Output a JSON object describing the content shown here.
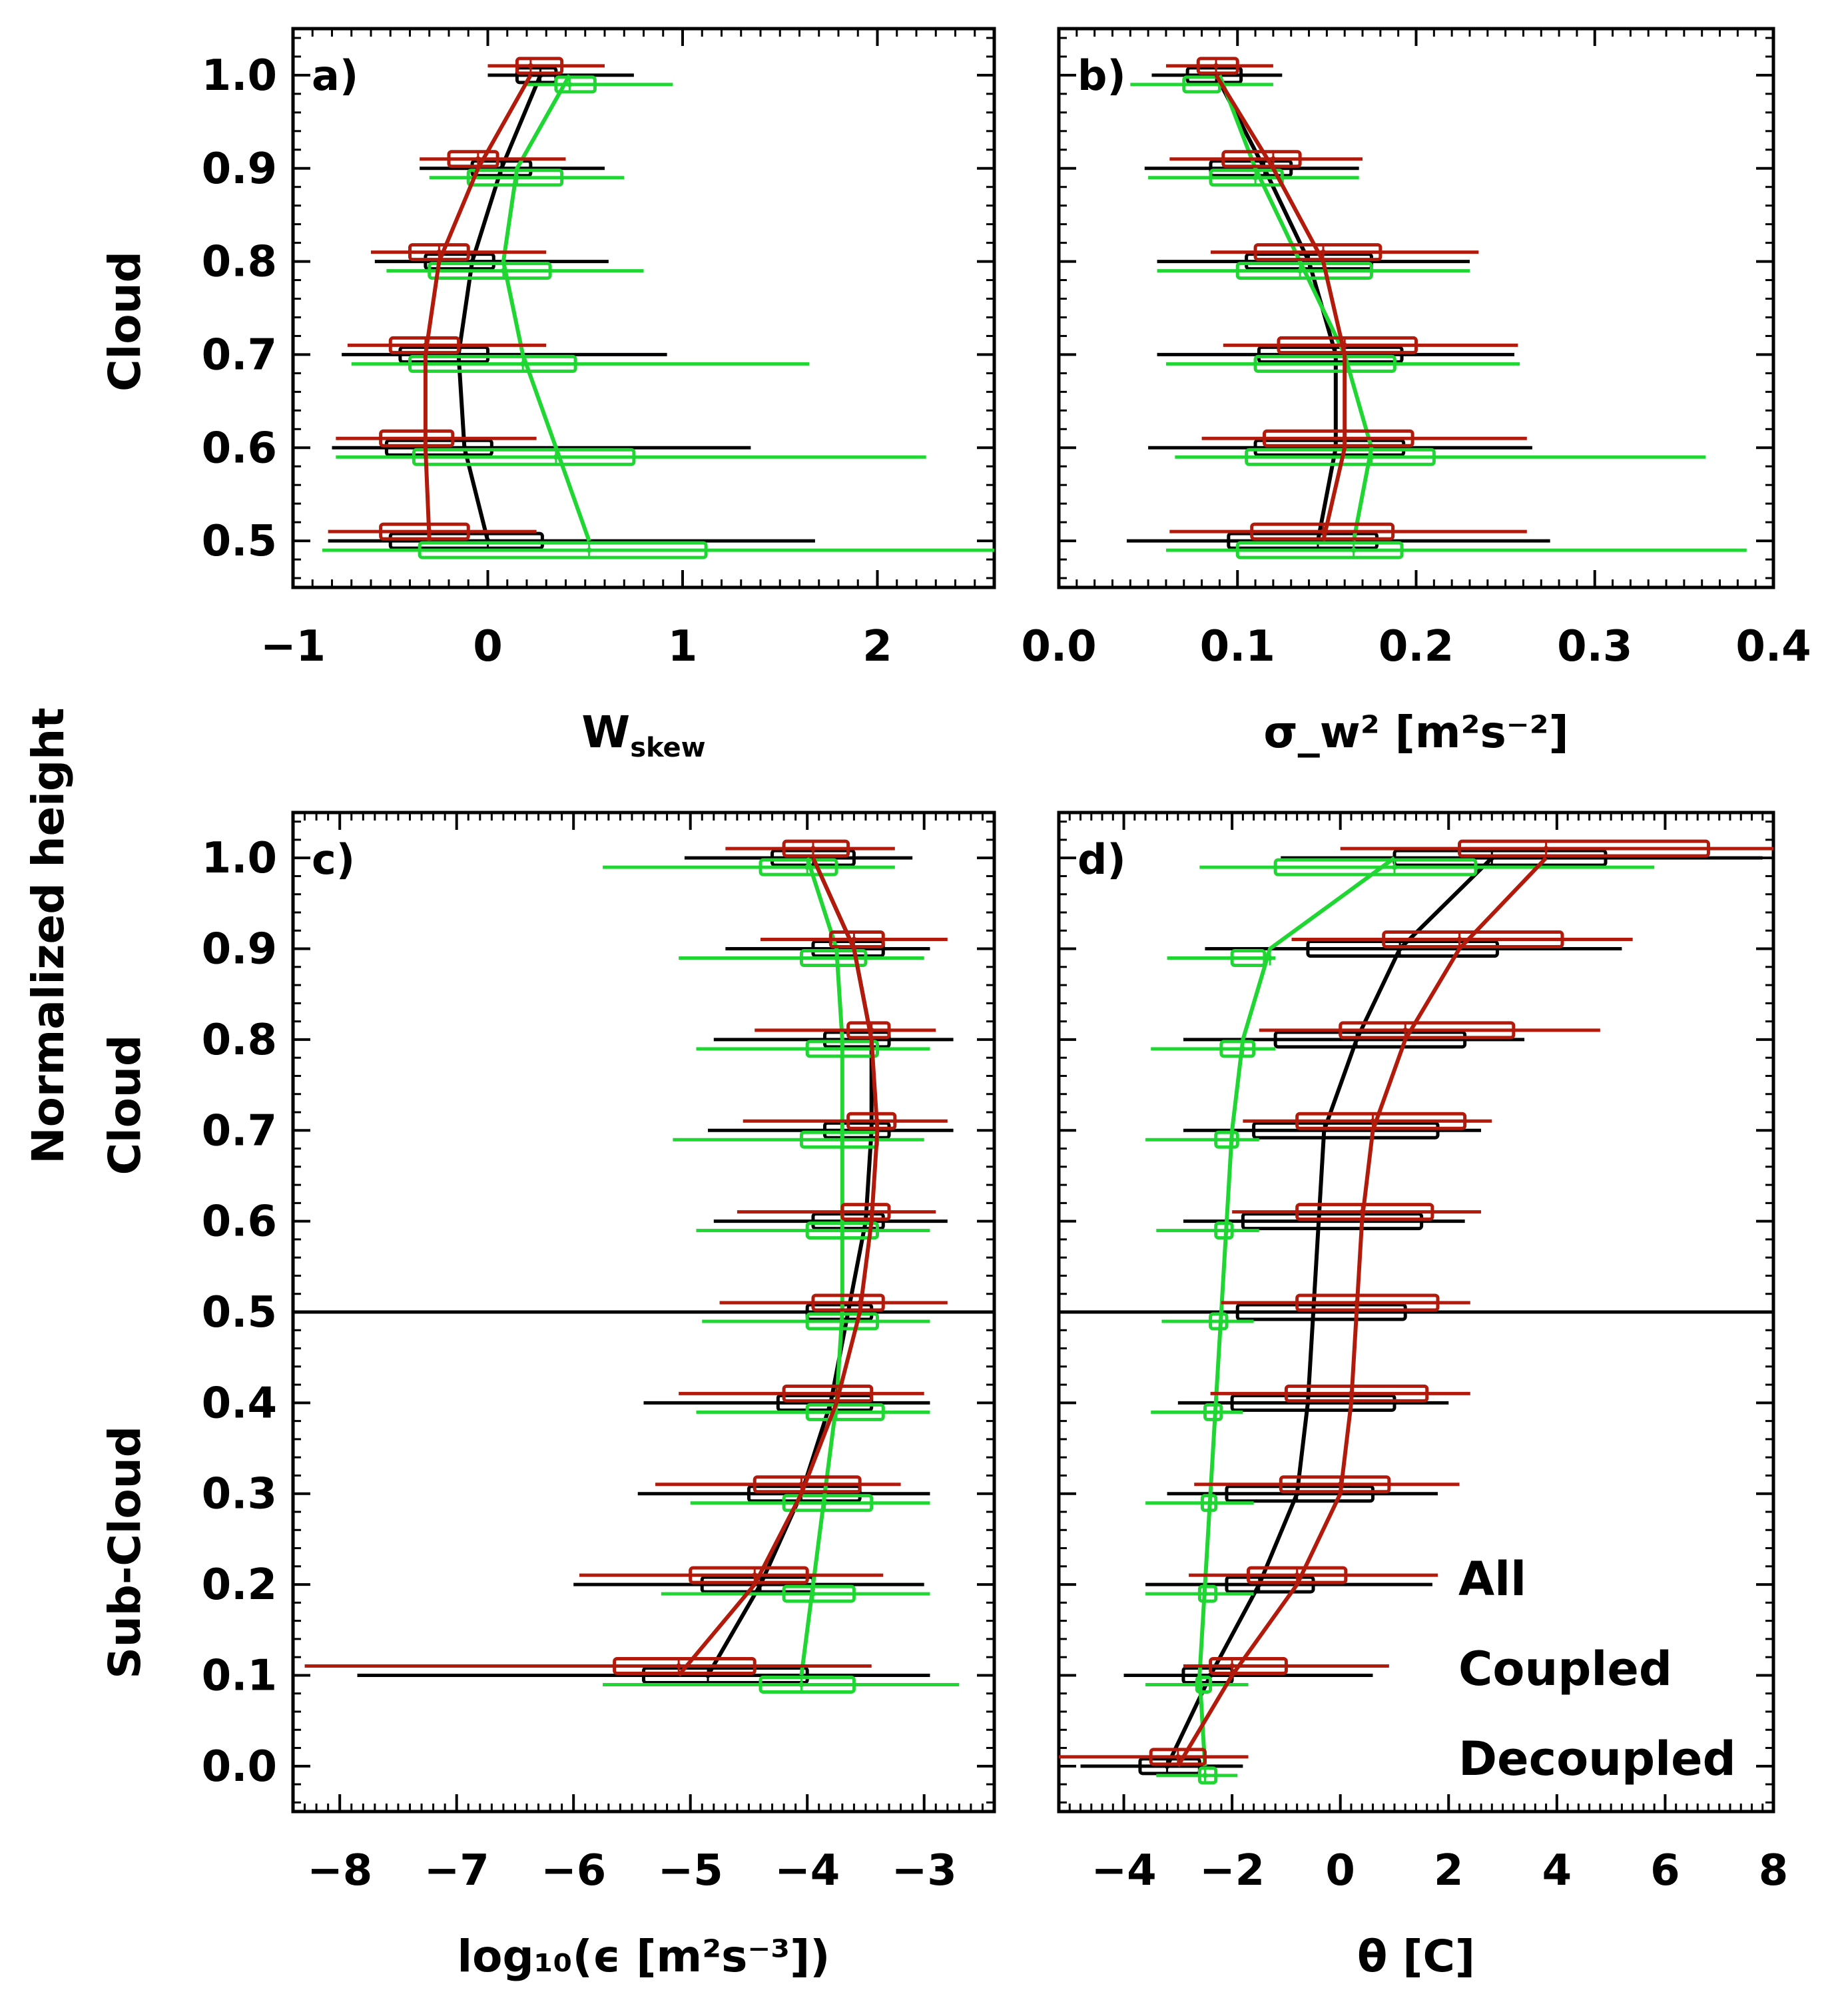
{
  "figure": {
    "ylabel": "Normalized height",
    "legend": [
      {
        "label": "All",
        "color": "#000000"
      },
      {
        "label": "Coupled",
        "color": "#1fd633"
      },
      {
        "label": "Decoupled",
        "color": "#b21a0c"
      }
    ]
  },
  "colors": {
    "all": "#000000",
    "coupled": "#1fd633",
    "decoupled": "#b21a0c"
  },
  "chart_data": [
    {
      "panel": "a)",
      "type": "line",
      "xlabel": "W",
      "xlabel_sub": "skew",
      "ylabel": "Cloud",
      "xlim": [
        -1,
        2.6
      ],
      "ylim": [
        0.45,
        1.05
      ],
      "xticks": [
        "−1",
        "0",
        "1",
        "2"
      ],
      "xtick_values": [
        -1,
        0,
        1,
        2
      ],
      "yticks": [
        "0.5",
        "0.6",
        "0.7",
        "0.8",
        "0.9",
        "1.0"
      ],
      "ytick_values": [
        0.5,
        0.6,
        0.7,
        0.8,
        0.9,
        1.0
      ],
      "series": [
        {
          "key": "all",
          "y": [
            0.5,
            0.6,
            0.7,
            0.8,
            0.9,
            1.0
          ],
          "median": [
            0.0,
            -0.12,
            -0.15,
            -0.08,
            0.07,
            0.27
          ],
          "q1": [
            -0.5,
            -0.52,
            -0.45,
            -0.32,
            -0.08,
            0.15
          ],
          "q3": [
            0.28,
            0.02,
            0.0,
            0.03,
            0.22,
            0.35
          ],
          "wlo": [
            -0.82,
            -0.8,
            -0.75,
            -0.58,
            -0.35,
            0.0
          ],
          "whi": [
            1.68,
            1.35,
            0.92,
            0.62,
            0.6,
            0.75
          ]
        },
        {
          "key": "coupled",
          "y": [
            0.5,
            0.6,
            0.7,
            0.8,
            0.9,
            1.0
          ],
          "median": [
            0.52,
            0.35,
            0.18,
            0.08,
            0.15,
            0.42
          ],
          "q1": [
            -0.35,
            -0.38,
            -0.4,
            -0.3,
            -0.1,
            0.35
          ],
          "q3": [
            1.12,
            0.75,
            0.45,
            0.32,
            0.38,
            0.55
          ],
          "wlo": [
            -0.85,
            -0.78,
            -0.7,
            -0.52,
            -0.3,
            0.2
          ],
          "whi": [
            2.6,
            2.25,
            1.65,
            0.8,
            0.7,
            0.95
          ]
        },
        {
          "key": "decoupled",
          "y": [
            0.5,
            0.6,
            0.7,
            0.8,
            0.9,
            1.0
          ],
          "median": [
            -0.3,
            -0.32,
            -0.32,
            -0.25,
            -0.05,
            0.22
          ],
          "q1": [
            -0.55,
            -0.55,
            -0.5,
            -0.4,
            -0.2,
            0.15
          ],
          "q3": [
            -0.1,
            -0.18,
            -0.15,
            -0.1,
            0.05,
            0.38
          ],
          "wlo": [
            -0.82,
            -0.78,
            -0.72,
            -0.6,
            -0.35,
            0.0
          ],
          "whi": [
            0.25,
            0.25,
            0.3,
            0.3,
            0.4,
            0.6
          ]
        }
      ]
    },
    {
      "panel": "b)",
      "type": "line",
      "xlabel": "σ_w² [m²s⁻²]",
      "xlim": [
        0.0,
        0.4
      ],
      "ylim": [
        0.45,
        1.05
      ],
      "xticks": [
        "0.0",
        "0.1",
        "0.2",
        "0.3",
        "0.4"
      ],
      "xtick_values": [
        0.0,
        0.1,
        0.2,
        0.3,
        0.4
      ],
      "series": [
        {
          "key": "all",
          "y": [
            0.5,
            0.6,
            0.7,
            0.8,
            0.9,
            1.0
          ],
          "median": [
            0.145,
            0.155,
            0.155,
            0.14,
            0.115,
            0.088
          ],
          "q1": [
            0.095,
            0.11,
            0.112,
            0.105,
            0.085,
            0.072
          ],
          "q3": [
            0.178,
            0.193,
            0.192,
            0.175,
            0.13,
            0.102
          ],
          "wlo": [
            0.038,
            0.05,
            0.055,
            0.055,
            0.048,
            0.052
          ],
          "whi": [
            0.275,
            0.265,
            0.255,
            0.23,
            0.168,
            0.125
          ]
        },
        {
          "key": "coupled",
          "y": [
            0.5,
            0.6,
            0.7,
            0.8,
            0.9,
            1.0
          ],
          "median": [
            0.165,
            0.175,
            0.16,
            0.135,
            0.11,
            0.09
          ],
          "q1": [
            0.1,
            0.105,
            0.11,
            0.1,
            0.085,
            0.07
          ],
          "q3": [
            0.192,
            0.21,
            0.188,
            0.175,
            0.125,
            0.09
          ],
          "wlo": [
            0.06,
            0.065,
            0.06,
            0.055,
            0.05,
            0.04
          ],
          "whi": [
            0.385,
            0.362,
            0.258,
            0.23,
            0.168,
            0.12
          ]
        },
        {
          "key": "decoupled",
          "y": [
            0.5,
            0.6,
            0.7,
            0.8,
            0.9,
            1.0
          ],
          "median": [
            0.148,
            0.16,
            0.16,
            0.148,
            0.12,
            0.088
          ],
          "q1": [
            0.108,
            0.115,
            0.123,
            0.11,
            0.092,
            0.078
          ],
          "q3": [
            0.187,
            0.198,
            0.2,
            0.18,
            0.135,
            0.1
          ],
          "wlo": [
            0.062,
            0.08,
            0.092,
            0.085,
            0.062,
            0.06
          ],
          "whi": [
            0.262,
            0.262,
            0.257,
            0.235,
            0.17,
            0.12
          ]
        }
      ]
    },
    {
      "panel": "c)",
      "type": "line",
      "xlabel": "log₁₀(ϵ [m²s⁻³])",
      "ylabel_top": "Cloud",
      "ylabel_bottom": "Sub-Cloud",
      "xlim": [
        -8.4,
        -2.4
      ],
      "ylim": [
        -0.05,
        1.05
      ],
      "xticks": [
        "−8",
        "−7",
        "−6",
        "−5",
        "−4",
        "−3"
      ],
      "xtick_values": [
        -8,
        -7,
        -6,
        -5,
        -4,
        -3
      ],
      "yticks": [
        "0.0",
        "0.1",
        "0.2",
        "0.3",
        "0.4",
        "0.5",
        "0.6",
        "0.7",
        "0.8",
        "0.9",
        "1.0"
      ],
      "ytick_values": [
        0.0,
        0.1,
        0.2,
        0.3,
        0.4,
        0.5,
        0.6,
        0.7,
        0.8,
        0.9,
        1.0
      ],
      "hline": 0.5,
      "series": [
        {
          "key": "all",
          "y": [
            0.1,
            0.2,
            0.3,
            0.4,
            0.5,
            0.6,
            0.7,
            0.8,
            0.9,
            1.0
          ],
          "median": [
            -4.85,
            -4.4,
            -4.05,
            -3.8,
            -3.65,
            -3.5,
            -3.45,
            -3.45,
            -3.6,
            -3.95
          ],
          "q1": [
            -5.4,
            -4.9,
            -4.5,
            -4.25,
            -4.0,
            -3.95,
            -3.85,
            -3.85,
            -3.95,
            -4.3
          ],
          "q3": [
            -4.0,
            -3.95,
            -3.55,
            -3.45,
            -3.45,
            -3.35,
            -3.3,
            -3.3,
            -3.35,
            -3.6
          ],
          "wlo": [
            -7.85,
            -6.0,
            -5.45,
            -5.4,
            -5.25,
            -4.8,
            -4.85,
            -4.8,
            -4.7,
            -5.05
          ],
          "whi": [
            -2.95,
            -3.0,
            -2.95,
            -2.95,
            -2.75,
            -2.8,
            -2.75,
            -2.75,
            -2.95,
            -3.1
          ]
        },
        {
          "key": "coupled",
          "y": [
            0.1,
            0.2,
            0.3,
            0.4,
            0.5,
            0.6,
            0.7,
            0.8,
            0.9,
            1.0
          ],
          "median": [
            -4.05,
            -3.95,
            -3.85,
            -3.75,
            -3.7,
            -3.7,
            -3.7,
            -3.7,
            -3.75,
            -4.0
          ],
          "q1": [
            -4.4,
            -4.2,
            -4.2,
            -4.0,
            -4.0,
            -4.0,
            -4.05,
            -4.0,
            -4.05,
            -4.4
          ],
          "q3": [
            -3.6,
            -3.6,
            -3.45,
            -3.35,
            -3.4,
            -3.4,
            -3.4,
            -3.4,
            -3.5,
            -3.75
          ],
          "wlo": [
            -5.75,
            -5.25,
            -5.0,
            -4.95,
            -4.9,
            -4.95,
            -5.15,
            -4.95,
            -5.1,
            -5.75
          ],
          "whi": [
            -2.7,
            -2.95,
            -2.95,
            -2.95,
            -2.95,
            -2.95,
            -3.0,
            -2.95,
            -3.0,
            -3.25
          ]
        },
        {
          "key": "decoupled",
          "y": [
            0.1,
            0.2,
            0.3,
            0.4,
            0.5,
            0.6,
            0.7,
            0.8,
            0.9,
            1.0
          ],
          "median": [
            -5.1,
            -4.45,
            -4.05,
            -3.75,
            -3.55,
            -3.45,
            -3.4,
            -3.45,
            -3.6,
            -3.95
          ],
          "q1": [
            -5.65,
            -5.0,
            -4.45,
            -4.2,
            -3.95,
            -3.7,
            -3.65,
            -3.65,
            -3.8,
            -4.2
          ],
          "q3": [
            -4.45,
            -4.0,
            -3.55,
            -3.45,
            -3.35,
            -3.3,
            -3.25,
            -3.3,
            -3.35,
            -3.65
          ],
          "wlo": [
            -8.3,
            -5.95,
            -5.3,
            -5.1,
            -4.75,
            -4.6,
            -4.55,
            -4.45,
            -4.4,
            -4.7
          ],
          "whi": [
            -3.45,
            -3.35,
            -3.2,
            -3.0,
            -2.8,
            -2.9,
            -2.8,
            -2.9,
            -2.8,
            -3.25
          ]
        }
      ]
    },
    {
      "panel": "d)",
      "type": "line",
      "xlabel": "θ [C]",
      "xlim": [
        -5.2,
        8.0
      ],
      "ylim": [
        -0.05,
        1.05
      ],
      "xticks": [
        "−4",
        "−2",
        "0",
        "2",
        "4",
        "6",
        "8"
      ],
      "xtick_values": [
        -4,
        -2,
        0,
        2,
        4,
        6,
        8
      ],
      "hline": 0.5,
      "series": [
        {
          "key": "all",
          "y": [
            0.0,
            0.1,
            0.2,
            0.3,
            0.4,
            0.5,
            0.6,
            0.7,
            0.8,
            0.9,
            1.0
          ],
          "median": [
            -3.2,
            -2.4,
            -1.5,
            -0.8,
            -0.6,
            -0.5,
            -0.4,
            -0.3,
            0.3,
            1.1,
            2.8
          ],
          "q1": [
            -3.7,
            -2.9,
            -2.1,
            -2.1,
            -2.0,
            -1.9,
            -1.8,
            -1.6,
            -1.2,
            -0.6,
            1.0
          ],
          "q3": [
            -2.6,
            -2.0,
            -0.5,
            0.6,
            1.0,
            1.2,
            1.5,
            1.8,
            2.3,
            2.9,
            4.9
          ],
          "wlo": [
            -4.8,
            -4.0,
            -3.6,
            -3.2,
            -3.0,
            -2.9,
            -2.9,
            -2.9,
            -2.9,
            -2.5,
            -1.1
          ],
          "whi": [
            -1.8,
            0.6,
            1.7,
            1.8,
            2.0,
            2.1,
            2.3,
            2.6,
            3.4,
            5.2,
            7.8
          ]
        },
        {
          "key": "coupled",
          "y": [
            0.0,
            0.1,
            0.2,
            0.3,
            0.4,
            0.5,
            0.6,
            0.7,
            0.8,
            0.9,
            1.0
          ],
          "median": [
            -2.5,
            -2.6,
            -2.5,
            -2.4,
            -2.3,
            -2.2,
            -2.1,
            -2.0,
            -1.8,
            -1.3,
            1.0
          ],
          "q1": [
            -2.6,
            -2.65,
            -2.6,
            -2.55,
            -2.5,
            -2.4,
            -2.3,
            -2.3,
            -2.2,
            -2.0,
            -1.2
          ],
          "q3": [
            -2.3,
            -2.4,
            -2.3,
            -2.3,
            -2.2,
            -2.1,
            -2.0,
            -1.9,
            -1.6,
            -1.4,
            2.5
          ],
          "wlo": [
            -3.4,
            -3.6,
            -3.6,
            -3.6,
            -3.5,
            -3.3,
            -3.4,
            -3.6,
            -3.5,
            -3.2,
            -2.6
          ],
          "whi": [
            -1.9,
            -1.7,
            -1.6,
            -1.6,
            -1.8,
            -1.6,
            -1.5,
            -1.5,
            -1.2,
            -1.2,
            5.8
          ]
        },
        {
          "key": "decoupled",
          "y": [
            0.0,
            0.1,
            0.2,
            0.3,
            0.4,
            0.5,
            0.6,
            0.7,
            0.8,
            0.9,
            1.0
          ],
          "median": [
            -3.0,
            -2.0,
            -0.8,
            0.0,
            0.2,
            0.3,
            0.4,
            0.6,
            1.2,
            2.2,
            3.8
          ],
          "q1": [
            -3.5,
            -2.4,
            -1.7,
            -1.1,
            -1.0,
            -0.8,
            -0.8,
            -0.8,
            0.0,
            0.8,
            2.2
          ],
          "q3": [
            -2.5,
            -1.0,
            0.1,
            0.9,
            1.6,
            1.8,
            1.7,
            2.3,
            3.2,
            4.1,
            6.8
          ],
          "wlo": [
            -5.2,
            -2.9,
            -2.8,
            -2.7,
            -2.4,
            -2.2,
            -2.0,
            -1.8,
            -1.5,
            -0.9,
            0.0
          ],
          "whi": [
            -1.7,
            0.9,
            1.8,
            2.2,
            2.4,
            2.4,
            2.6,
            2.8,
            4.8,
            5.4,
            8.0
          ]
        }
      ]
    }
  ]
}
